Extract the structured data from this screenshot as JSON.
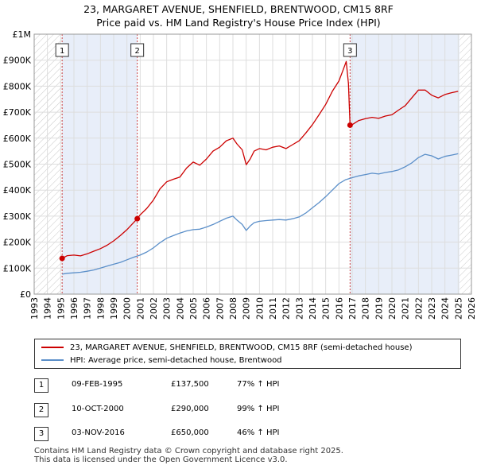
{
  "title_line1": "23, MARGARET AVENUE, SHENFIELD, BRENTWOOD, CM15 8RF",
  "title_line2": "Price paid vs. HM Land Registry's House Price Index (HPI)",
  "colors": {
    "price": "#cc0000",
    "hpi": "#5b8fc9",
    "shade": "#e8eef9",
    "grid": "#dddddd"
  },
  "legend": {
    "price_label": "23, MARGARET AVENUE, SHENFIELD, BRENTWOOD, CM15 8RF (semi-detached house)",
    "hpi_label": "HPI: Average price, semi-detached house, Brentwood"
  },
  "sales": [
    {
      "n": "1",
      "date": "09-FEB-1995",
      "price": "£137,500",
      "hpi": "77% ↑ HPI"
    },
    {
      "n": "2",
      "date": "10-OCT-2000",
      "price": "£290,000",
      "hpi": "99% ↑ HPI"
    },
    {
      "n": "3",
      "date": "03-NOV-2016",
      "price": "£650,000",
      "hpi": "46% ↑ HPI"
    }
  ],
  "footer": {
    "line1": "Contains HM Land Registry data © Crown copyright and database right 2025.",
    "line2": "This data is licensed under the Open Government Licence v3.0."
  },
  "chart_data": {
    "type": "line",
    "xlim": [
      1993,
      2026
    ],
    "ylim": [
      0,
      1000000
    ],
    "y_ticks": [
      0,
      100000,
      200000,
      300000,
      400000,
      500000,
      600000,
      700000,
      800000,
      900000,
      1000000
    ],
    "y_tick_labels": [
      "£0",
      "£100K",
      "£200K",
      "£300K",
      "£400K",
      "£500K",
      "£600K",
      "£700K",
      "£800K",
      "£900K",
      "£1M"
    ],
    "x_ticks": [
      1993,
      1994,
      1995,
      1996,
      1997,
      1998,
      1999,
      2000,
      2001,
      2002,
      2003,
      2004,
      2005,
      2006,
      2007,
      2008,
      2009,
      2010,
      2011,
      2012,
      2013,
      2014,
      2015,
      2016,
      2017,
      2018,
      2019,
      2020,
      2021,
      2022,
      2023,
      2024,
      2025,
      2026
    ],
    "x_tick_labels": [
      "1993",
      "1994",
      "1995",
      "1996",
      "1997",
      "1998",
      "1999",
      "2000",
      "2001",
      "2002",
      "2003",
      "2004",
      "2005",
      "2006",
      "2007",
      "2008",
      "2009",
      "2010",
      "2011",
      "2012",
      "2013",
      "2014",
      "2015",
      "2016",
      "2017",
      "2018",
      "2019",
      "2020",
      "2021",
      "2022",
      "2023",
      "2024",
      "2025",
      "2026"
    ],
    "shaded_regions": [
      [
        1995.1,
        2000.8
      ],
      [
        2016.85,
        2025.1
      ]
    ],
    "hatched_regions": [
      [
        1993,
        1995.1
      ],
      [
        2025.1,
        2026
      ]
    ],
    "sale_markers": [
      {
        "label": "1",
        "x": 1995.11,
        "y": 137500
      },
      {
        "label": "2",
        "x": 2000.78,
        "y": 290000
      },
      {
        "label": "3",
        "x": 2016.84,
        "y": 650000
      }
    ],
    "series": [
      {
        "name": "23, MARGARET AVENUE, SHENFIELD, BRENTWOOD, CM15 8RF (semi-detached house)",
        "x": [
          1995.11,
          1995.5,
          1996,
          1996.5,
          1997,
          1997.5,
          1998,
          1998.5,
          1999,
          1999.5,
          2000,
          2000.5,
          2000.78,
          2001,
          2001.5,
          2002,
          2002.5,
          2003,
          2003.5,
          2004,
          2004.5,
          2005,
          2005.5,
          2006,
          2006.5,
          2007,
          2007.5,
          2008,
          2008.3,
          2008.7,
          2009,
          2009.3,
          2009.6,
          2010,
          2010.5,
          2011,
          2011.5,
          2012,
          2012.5,
          2013,
          2013.5,
          2014,
          2014.5,
          2015,
          2015.5,
          2016,
          2016.3,
          2016.55,
          2016.72,
          2016.84,
          2017,
          2017.5,
          2018,
          2018.5,
          2019,
          2019.5,
          2020,
          2020.5,
          2021,
          2021.5,
          2022,
          2022.5,
          2023,
          2023.5,
          2024,
          2024.5,
          2025
        ],
        "values": [
          137500,
          148000,
          150000,
          147000,
          155000,
          165000,
          175000,
          188000,
          205000,
          225000,
          248000,
          275000,
          290000,
          305000,
          330000,
          362000,
          405000,
          432000,
          442000,
          450000,
          485000,
          508000,
          496000,
          520000,
          550000,
          565000,
          590000,
          600000,
          578000,
          555000,
          498000,
          520000,
          550000,
          560000,
          555000,
          565000,
          570000,
          560000,
          575000,
          590000,
          620000,
          652000,
          690000,
          730000,
          780000,
          820000,
          860000,
          895000,
          810000,
          650000,
          652000,
          668000,
          675000,
          680000,
          676000,
          685000,
          690000,
          708000,
          725000,
          755000,
          785000,
          785000,
          765000,
          755000,
          768000,
          775000,
          780000
        ]
      },
      {
        "name": "HPI: Average price, semi-detached house, Brentwood",
        "x": [
          1995.11,
          1995.5,
          1996,
          1996.5,
          1997,
          1997.5,
          1998,
          1998.5,
          1999,
          1999.5,
          2000,
          2000.5,
          2001,
          2001.5,
          2002,
          2002.5,
          2003,
          2003.5,
          2004,
          2004.5,
          2005,
          2005.5,
          2006,
          2006.5,
          2007,
          2007.5,
          2008,
          2008.3,
          2008.7,
          2009,
          2009.3,
          2009.6,
          2010,
          2010.5,
          2011,
          2011.5,
          2012,
          2012.5,
          2013,
          2013.5,
          2014,
          2014.5,
          2015,
          2015.5,
          2016,
          2016.5,
          2017,
          2017.5,
          2018,
          2018.5,
          2019,
          2019.5,
          2020,
          2020.5,
          2021,
          2021.5,
          2022,
          2022.5,
          2023,
          2023.5,
          2024,
          2024.5,
          2025
        ],
        "values": [
          77000,
          80000,
          82000,
          84000,
          88000,
          93000,
          100000,
          108000,
          115000,
          122000,
          132000,
          142000,
          150000,
          162000,
          178000,
          198000,
          215000,
          225000,
          235000,
          243000,
          248000,
          250000,
          258000,
          268000,
          280000,
          292000,
          300000,
          285000,
          268000,
          245000,
          262000,
          275000,
          280000,
          283000,
          285000,
          287000,
          285000,
          290000,
          297000,
          312000,
          332000,
          352000,
          375000,
          400000,
          425000,
          440000,
          448000,
          455000,
          460000,
          465000,
          462000,
          468000,
          472000,
          478000,
          490000,
          505000,
          525000,
          538000,
          532000,
          520000,
          530000,
          535000,
          540000
        ]
      }
    ]
  }
}
